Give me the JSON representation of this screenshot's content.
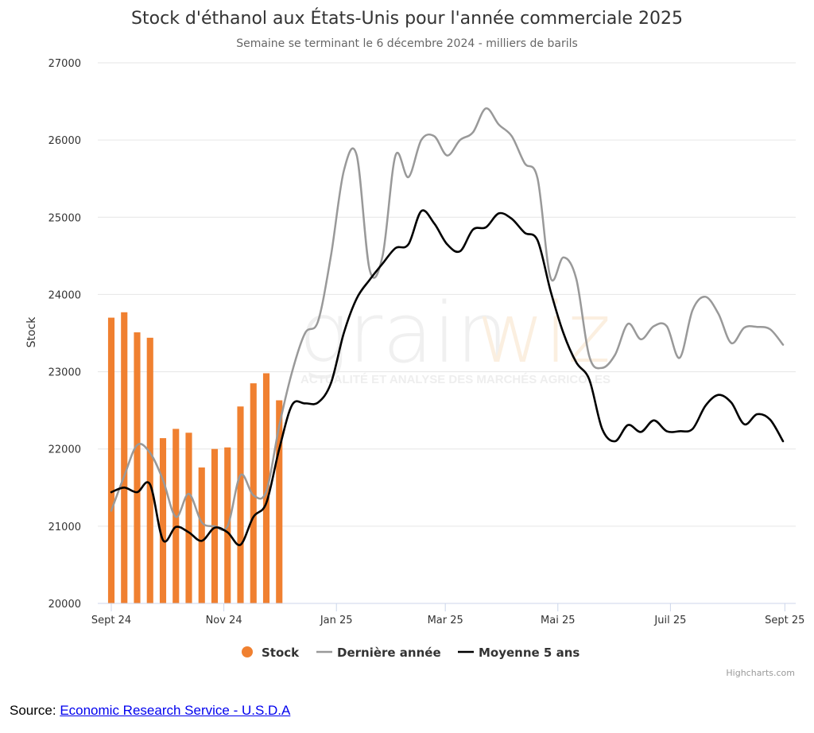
{
  "chart_data": {
    "type": "bar+line",
    "title": "Stock d'éthanol aux États-Unis pour l'année commerciale 2025",
    "subtitle": "Semaine se terminant le 6 décembre 2024 - milliers de barils",
    "ylabel": "Stock",
    "xlabel": "",
    "ylim": [
      20000,
      27000
    ],
    "yticks": [
      20000,
      21000,
      22000,
      23000,
      24000,
      25000,
      26000,
      27000
    ],
    "x_start": "2024-09-01",
    "x_end": "2025-08-31",
    "xticks": [
      {
        "date": "2024-09-01",
        "label": "Sept 24"
      },
      {
        "date": "2024-11-01",
        "label": "Nov 24"
      },
      {
        "date": "2025-01-01",
        "label": "Jan 25"
      },
      {
        "date": "2025-03-01",
        "label": "Mar 25"
      },
      {
        "date": "2025-05-01",
        "label": "Mai 25"
      },
      {
        "date": "2025-07-01",
        "label": "Juil 25"
      },
      {
        "date": "2025-09-01",
        "label": "Sept 25"
      }
    ],
    "grid": true,
    "legend_position": "bottom-center",
    "series": [
      {
        "name": "Stock",
        "type": "column",
        "color": "#f08030",
        "points": [
          [
            "2024-09-01",
            23700
          ],
          [
            "2024-09-08",
            23770
          ],
          [
            "2024-09-15",
            23510
          ],
          [
            "2024-09-22",
            23440
          ],
          [
            "2024-09-29",
            22140
          ],
          [
            "2024-10-06",
            22260
          ],
          [
            "2024-10-13",
            22210
          ],
          [
            "2024-10-20",
            21760
          ],
          [
            "2024-10-27",
            22000
          ],
          [
            "2024-11-03",
            22020
          ],
          [
            "2024-11-10",
            22550
          ],
          [
            "2024-11-17",
            22850
          ],
          [
            "2024-11-24",
            22980
          ],
          [
            "2024-12-01",
            22630
          ]
        ]
      },
      {
        "name": "Dernière année",
        "type": "spline",
        "color": "#999999",
        "points": [
          [
            "2024-09-01",
            21200
          ],
          [
            "2024-09-08",
            21650
          ],
          [
            "2024-09-15",
            22050
          ],
          [
            "2024-09-22",
            21950
          ],
          [
            "2024-09-29",
            21600
          ],
          [
            "2024-10-06",
            21120
          ],
          [
            "2024-10-13",
            21420
          ],
          [
            "2024-10-20",
            21050
          ],
          [
            "2024-10-27",
            21000
          ],
          [
            "2024-11-03",
            21000
          ],
          [
            "2024-11-10",
            21660
          ],
          [
            "2024-11-17",
            21400
          ],
          [
            "2024-11-24",
            21450
          ],
          [
            "2024-12-01",
            22300
          ],
          [
            "2024-12-08",
            23000
          ],
          [
            "2024-12-15",
            23500
          ],
          [
            "2024-12-22",
            23650
          ],
          [
            "2024-12-29",
            24500
          ],
          [
            "2025-01-05",
            25600
          ],
          [
            "2025-01-12",
            25800
          ],
          [
            "2025-01-19",
            24320
          ],
          [
            "2025-01-26",
            24500
          ],
          [
            "2025-02-02",
            25800
          ],
          [
            "2025-02-09",
            25520
          ],
          [
            "2025-02-16",
            26000
          ],
          [
            "2025-02-23",
            26050
          ],
          [
            "2025-03-02",
            25800
          ],
          [
            "2025-03-09",
            26000
          ],
          [
            "2025-03-16",
            26100
          ],
          [
            "2025-03-23",
            26410
          ],
          [
            "2025-03-30",
            26200
          ],
          [
            "2025-04-06",
            26050
          ],
          [
            "2025-04-13",
            25700
          ],
          [
            "2025-04-20",
            25500
          ],
          [
            "2025-04-27",
            24220
          ],
          [
            "2025-05-04",
            24480
          ],
          [
            "2025-05-11",
            24200
          ],
          [
            "2025-05-18",
            23200
          ],
          [
            "2025-05-25",
            23050
          ],
          [
            "2025-06-01",
            23220
          ],
          [
            "2025-06-08",
            23620
          ],
          [
            "2025-06-15",
            23420
          ],
          [
            "2025-06-22",
            23590
          ],
          [
            "2025-06-29",
            23590
          ],
          [
            "2025-07-06",
            23180
          ],
          [
            "2025-07-13",
            23800
          ],
          [
            "2025-07-20",
            23970
          ],
          [
            "2025-07-27",
            23750
          ],
          [
            "2025-08-03",
            23370
          ],
          [
            "2025-08-10",
            23570
          ],
          [
            "2025-08-17",
            23580
          ],
          [
            "2025-08-24",
            23550
          ],
          [
            "2025-08-31",
            23350
          ]
        ]
      },
      {
        "name": "Moyenne 5 ans",
        "type": "spline",
        "color": "#000000",
        "points": [
          [
            "2024-09-01",
            21440
          ],
          [
            "2024-09-08",
            21500
          ],
          [
            "2024-09-15",
            21440
          ],
          [
            "2024-09-22",
            21540
          ],
          [
            "2024-09-29",
            20820
          ],
          [
            "2024-10-06",
            20990
          ],
          [
            "2024-10-13",
            20920
          ],
          [
            "2024-10-20",
            20810
          ],
          [
            "2024-10-27",
            20980
          ],
          [
            "2024-11-03",
            20920
          ],
          [
            "2024-11-10",
            20760
          ],
          [
            "2024-11-17",
            21120
          ],
          [
            "2024-11-24",
            21300
          ],
          [
            "2024-12-01",
            22000
          ],
          [
            "2024-12-08",
            22570
          ],
          [
            "2024-12-15",
            22590
          ],
          [
            "2024-12-22",
            22600
          ],
          [
            "2024-12-29",
            22850
          ],
          [
            "2025-01-05",
            23500
          ],
          [
            "2025-01-12",
            23950
          ],
          [
            "2025-01-19",
            24190
          ],
          [
            "2025-01-26",
            24400
          ],
          [
            "2025-02-02",
            24600
          ],
          [
            "2025-02-09",
            24650
          ],
          [
            "2025-02-16",
            25080
          ],
          [
            "2025-02-23",
            24920
          ],
          [
            "2025-03-02",
            24650
          ],
          [
            "2025-03-09",
            24560
          ],
          [
            "2025-03-16",
            24840
          ],
          [
            "2025-03-23",
            24870
          ],
          [
            "2025-03-30",
            25050
          ],
          [
            "2025-04-06",
            24980
          ],
          [
            "2025-04-13",
            24800
          ],
          [
            "2025-04-20",
            24700
          ],
          [
            "2025-04-27",
            24050
          ],
          [
            "2025-05-04",
            23500
          ],
          [
            "2025-05-11",
            23120
          ],
          [
            "2025-05-18",
            22900
          ],
          [
            "2025-05-25",
            22260
          ],
          [
            "2025-06-01",
            22100
          ],
          [
            "2025-06-08",
            22310
          ],
          [
            "2025-06-15",
            22220
          ],
          [
            "2025-06-22",
            22370
          ],
          [
            "2025-06-29",
            22230
          ],
          [
            "2025-07-06",
            22230
          ],
          [
            "2025-07-13",
            22260
          ],
          [
            "2025-07-20",
            22560
          ],
          [
            "2025-07-27",
            22700
          ],
          [
            "2025-08-03",
            22600
          ],
          [
            "2025-08-10",
            22320
          ],
          [
            "2025-08-17",
            22450
          ],
          [
            "2025-08-24",
            22380
          ],
          [
            "2025-08-31",
            22100
          ]
        ]
      }
    ],
    "credits": "Highcharts.com"
  },
  "watermark": {
    "brand_left": "grain",
    "brand_right": "wiz",
    "tagline": "ACTUALITÉ ET ANALYSE DES MARCHÉS AGRICOLES"
  },
  "source": {
    "prefix": "Source: ",
    "link_text": "Economic Research Service - U.S.D.A"
  }
}
